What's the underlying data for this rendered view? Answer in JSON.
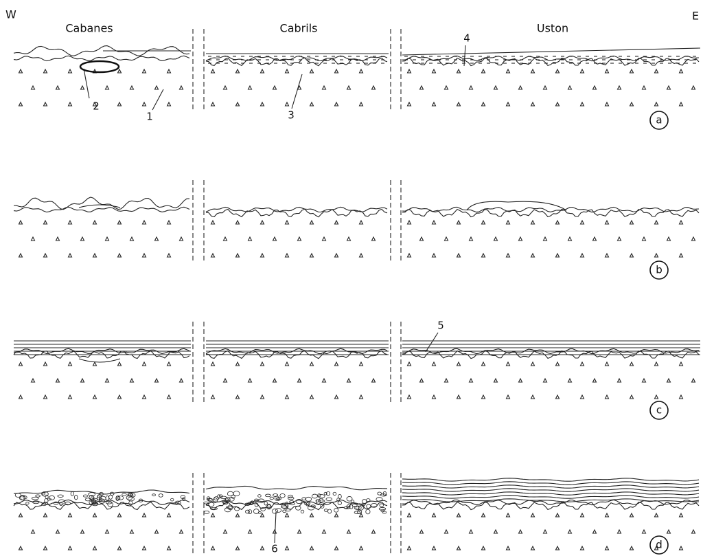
{
  "header": {
    "west": "W",
    "east": "E",
    "sections": [
      "Cabanes",
      "Cabrils",
      "Uston"
    ]
  },
  "callouts": [
    "1",
    "2",
    "3",
    "4",
    "5",
    "6"
  ],
  "panels": [
    "a",
    "b",
    "c",
    "d"
  ]
}
